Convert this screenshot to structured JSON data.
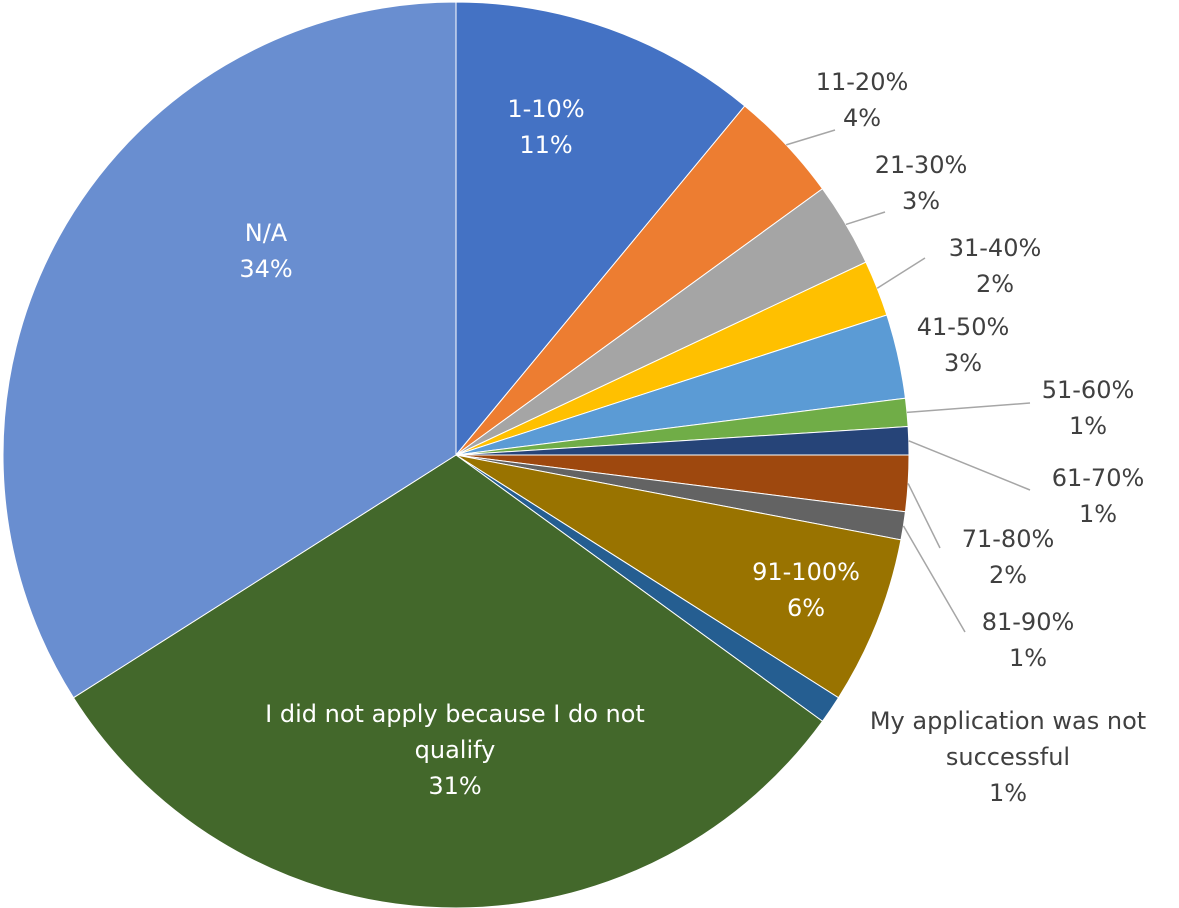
{
  "chart_data": {
    "type": "pie",
    "categories": [
      "1-10%",
      "11-20%",
      "21-30%",
      "31-40%",
      "41-50%",
      "51-60%",
      "61-70%",
      "71-80%",
      "81-90%",
      "91-100%",
      "My application was not successful",
      "I did not apply because I do not qualify",
      "N/A"
    ],
    "values": [
      11,
      4,
      3,
      2,
      3,
      1,
      1,
      2,
      1,
      6,
      1,
      31,
      34
    ],
    "value_labels": [
      "11%",
      "4%",
      "3%",
      "2%",
      "3%",
      "1%",
      "1%",
      "2%",
      "1%",
      "6%",
      "1%",
      "31%",
      "34%"
    ],
    "colors": [
      "#4472c4",
      "#ed7d31",
      "#a5a5a5",
      "#ffc000",
      "#5b9bd5",
      "#70ad47",
      "#264478",
      "#9e480e",
      "#636363",
      "#997300",
      "#255e91",
      "#43682b",
      "#698ed0"
    ]
  }
}
